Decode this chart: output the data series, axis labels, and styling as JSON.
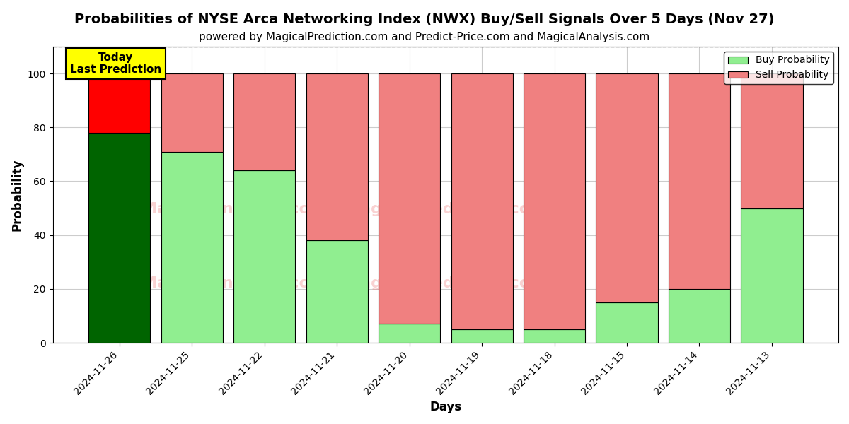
{
  "title": "Probabilities of NYSE Arca Networking Index (NWX) Buy/Sell Signals Over 5 Days (Nov 27)",
  "subtitle": "powered by MagicalPrediction.com and Predict-Price.com and MagicalAnalysis.com",
  "xlabel": "Days",
  "ylabel": "Probability",
  "dates": [
    "2024-11-26",
    "2024-11-25",
    "2024-11-22",
    "2024-11-21",
    "2024-11-20",
    "2024-11-19",
    "2024-11-18",
    "2024-11-15",
    "2024-11-14",
    "2024-11-13"
  ],
  "buy_values": [
    78,
    71,
    64,
    38,
    7,
    5,
    5,
    15,
    20,
    50
  ],
  "sell_values": [
    22,
    29,
    36,
    62,
    93,
    95,
    95,
    85,
    80,
    50
  ],
  "today_buy_color": "#006400",
  "today_sell_color": "#FF0000",
  "regular_buy_color": "#90EE90",
  "regular_sell_color": "#F08080",
  "today_annotation": "Today\nLast Prediction",
  "legend_buy": "Buy Probability",
  "legend_sell": "Sell Probability",
  "ylim": [
    0,
    110
  ],
  "dashed_line_y": 110,
  "background_color": "#ffffff",
  "grid_color": "#cccccc",
  "title_fontsize": 14,
  "subtitle_fontsize": 11,
  "axis_label_fontsize": 12,
  "tick_fontsize": 10,
  "bar_width": 0.85
}
